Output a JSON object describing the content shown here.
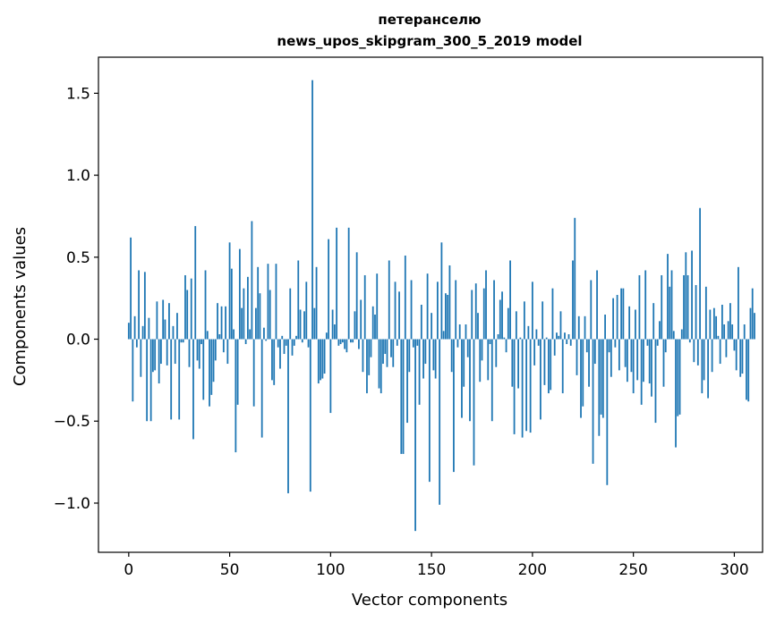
{
  "chart_data": {
    "type": "bar",
    "title_line1": "петеранселю",
    "title_line2": "news_upos_skipgram_300_5_2019 model",
    "xlabel": "Vector components",
    "ylabel": "Components values",
    "xlim": [
      -15,
      314
    ],
    "ylim": [
      -1.3,
      1.72
    ],
    "x_ticks": [
      0,
      50,
      100,
      150,
      200,
      250,
      300
    ],
    "x_tick_labels": [
      "0",
      "50",
      "100",
      "150",
      "200",
      "250",
      "300"
    ],
    "y_ticks": [
      1.5,
      1.0,
      0.5,
      0.0,
      -0.5,
      -1.0
    ],
    "y_tick_labels": [
      "1.5",
      "1.0",
      "0.5",
      "0.0",
      "−0.5",
      "−1.0"
    ],
    "bar_color": "#1f77b4",
    "values": [
      0.1,
      0.62,
      -0.38,
      0.14,
      -0.05,
      0.42,
      -0.23,
      0.08,
      0.41,
      -0.5,
      0.13,
      -0.5,
      -0.2,
      -0.19,
      0.23,
      -0.27,
      -0.15,
      0.24,
      0.12,
      -0.16,
      0.22,
      -0.49,
      0.08,
      -0.15,
      0.16,
      -0.49,
      -0.02,
      -0.02,
      0.39,
      0.3,
      -0.17,
      0.37,
      -0.61,
      0.69,
      -0.13,
      -0.18,
      -0.03,
      -0.37,
      0.42,
      0.05,
      -0.41,
      -0.34,
      -0.26,
      -0.13,
      0.22,
      0.03,
      0.2,
      -0.08,
      0.2,
      -0.15,
      0.59,
      0.43,
      0.06,
      -0.69,
      -0.4,
      0.55,
      0.19,
      0.31,
      -0.03,
      0.38,
      0.06,
      0.72,
      -0.41,
      0.19,
      0.44,
      0.28,
      -0.6,
      0.07,
      -0.01,
      0.46,
      0.3,
      -0.25,
      -0.28,
      0.46,
      -0.05,
      -0.18,
      0.02,
      -0.09,
      -0.04,
      -0.94,
      0.31,
      -0.1,
      -0.04,
      0.02,
      0.48,
      0.18,
      -0.02,
      0.17,
      0.35,
      -0.05,
      -0.93,
      1.58,
      0.19,
      0.44,
      -0.27,
      -0.25,
      -0.24,
      -0.21,
      0.04,
      0.61,
      -0.45,
      0.18,
      0.09,
      0.68,
      -0.04,
      -0.03,
      -0.02,
      -0.06,
      -0.08,
      0.68,
      -0.02,
      -0.02,
      0.17,
      0.53,
      -0.06,
      0.24,
      -0.2,
      0.39,
      -0.33,
      -0.22,
      -0.11,
      0.2,
      0.15,
      0.4,
      -0.3,
      -0.33,
      -0.15,
      -0.09,
      -0.17,
      0.48,
      -0.11,
      -0.17,
      0.35,
      -0.04,
      0.29,
      -0.7,
      -0.7,
      0.51,
      -0.51,
      -0.2,
      0.36,
      -0.05,
      -1.17,
      -0.04,
      -0.4,
      0.21,
      -0.24,
      -0.15,
      0.4,
      -0.87,
      0.16,
      -0.19,
      -0.24,
      0.35,
      -1.01,
      0.59,
      0.05,
      0.28,
      0.27,
      0.45,
      -0.2,
      -0.81,
      0.36,
      -0.05,
      0.09,
      -0.48,
      -0.29,
      0.09,
      -0.11,
      -0.5,
      0.3,
      -0.77,
      0.34,
      0.16,
      -0.26,
      -0.13,
      0.31,
      0.42,
      -0.25,
      -0.03,
      -0.5,
      0.36,
      -0.17,
      0.03,
      0.24,
      0.29,
      0.01,
      -0.08,
      0.19,
      0.48,
      -0.29,
      -0.58,
      0.17,
      -0.3,
      0.01,
      -0.6,
      0.23,
      -0.56,
      0.08,
      -0.57,
      0.35,
      -0.16,
      0.06,
      -0.04,
      -0.49,
      0.23,
      -0.28,
      0.01,
      -0.33,
      -0.31,
      0.31,
      -0.1,
      0.04,
      0.02,
      0.17,
      -0.33,
      0.04,
      -0.03,
      0.03,
      -0.04,
      0.48,
      0.74,
      -0.22,
      0.14,
      -0.48,
      -0.41,
      0.14,
      -0.08,
      -0.29,
      0.36,
      -0.76,
      -0.15,
      0.42,
      -0.59,
      -0.46,
      -0.48,
      0.15,
      -0.89,
      -0.08,
      -0.23,
      0.25,
      -0.05,
      0.27,
      -0.19,
      0.31,
      0.31,
      -0.17,
      -0.26,
      0.2,
      -0.2,
      -0.33,
      0.18,
      -0.25,
      0.39,
      -0.4,
      -0.26,
      0.42,
      -0.04,
      -0.27,
      -0.35,
      0.22,
      -0.51,
      -0.04,
      0.11,
      0.39,
      -0.29,
      -0.08,
      0.52,
      0.32,
      0.42,
      0.05,
      -0.66,
      -0.47,
      -0.46,
      0.06,
      0.39,
      0.53,
      0.39,
      -0.02,
      0.54,
      -0.14,
      0.33,
      -0.16,
      0.8,
      -0.33,
      -0.25,
      0.32,
      -0.36,
      0.18,
      -0.2,
      0.19,
      0.14,
      0.02,
      -0.15,
      0.21,
      0.09,
      -0.11,
      0.11,
      0.22,
      0.09,
      -0.07,
      -0.19,
      0.44,
      -0.23,
      -0.21,
      0.09,
      -0.37,
      -0.38,
      0.19,
      0.31,
      0.16
    ]
  }
}
